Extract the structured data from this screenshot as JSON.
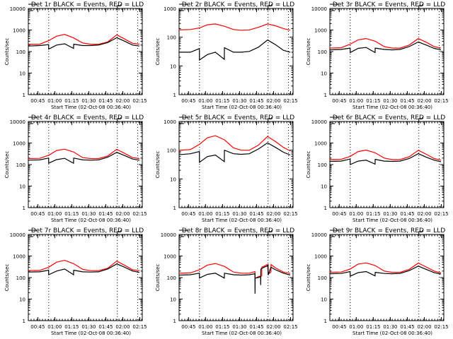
{
  "chart_data": [
    {
      "type": "line",
      "title": "Det 1r BLACK = Events, RED = LLD",
      "xlabel": "Start Time (02-Oct-08 00:36:40)",
      "ylabel": "Counts/sec",
      "ylim": [
        1,
        10000
      ],
      "yscale": "log",
      "yticks": [
        "1",
        "10",
        "100",
        "1000",
        "10000"
      ],
      "xticks": [
        "00:45",
        "01:00",
        "01:15",
        "01:30",
        "01:45",
        "02:00",
        "02:15"
      ],
      "xtick_minutes": [
        8.33,
        23.33,
        38.33,
        53.33,
        68.33,
        83.33,
        98.33
      ],
      "xlim_minutes": [
        0,
        100.5
      ],
      "vlines_minutes": [
        18,
        78.5,
        96.5
      ],
      "series": [
        {
          "name": "LLD",
          "color": "#ff0000",
          "x": [
            0,
            10,
            18,
            25,
            32,
            40,
            48,
            55,
            62,
            70,
            78,
            85,
            92,
            98
          ],
          "values": [
            220,
            220,
            320,
            520,
            620,
            430,
            250,
            220,
            220,
            280,
            600,
            380,
            240,
            220
          ]
        },
        {
          "name": "Events",
          "color": "#000000",
          "x": [
            0,
            10,
            17.9,
            18,
            25,
            32,
            39.9,
            40,
            48,
            55,
            62,
            70,
            78,
            85,
            92,
            98
          ],
          "values": [
            180,
            190,
            210,
            130,
            200,
            230,
            140,
            220,
            190,
            190,
            200,
            260,
            440,
            300,
            200,
            180
          ]
        }
      ]
    },
    {
      "type": "line",
      "title": "Det 2r BLACK = Events, RED = LLD",
      "xlabel": "Start Time (02-Oct-08 00:36:40)",
      "ylabel": "Counts/sec",
      "ylim": [
        1,
        1000
      ],
      "yscale": "log",
      "yticks": [
        "1",
        "10",
        "100",
        "1000"
      ],
      "xticks": [
        "00:45",
        "01:00",
        "01:15",
        "01:30",
        "01:45",
        "02:00",
        "02:15"
      ],
      "xtick_minutes": [
        8.33,
        23.33,
        38.33,
        53.33,
        68.33,
        83.33,
        98.33
      ],
      "xlim_minutes": [
        0,
        100.5
      ],
      "vlines_minutes": [
        18,
        78.5,
        96.5
      ],
      "series": [
        {
          "name": "LLD",
          "color": "#ff0000",
          "x": [
            0,
            10,
            18,
            25,
            32,
            40,
            48,
            55,
            62,
            70,
            78,
            85,
            92,
            98
          ],
          "values": [
            180,
            185,
            210,
            270,
            290,
            240,
            185,
            175,
            180,
            220,
            290,
            250,
            200,
            175
          ]
        },
        {
          "name": "Events",
          "color": "#000000",
          "x": [
            0,
            10,
            17.9,
            18,
            25,
            32,
            39.9,
            40,
            48,
            55,
            62,
            70,
            78,
            85,
            92,
            98
          ],
          "values": [
            30,
            30,
            40,
            16,
            25,
            30,
            17,
            43,
            30,
            30,
            32,
            45,
            80,
            55,
            35,
            30
          ]
        }
      ]
    },
    {
      "type": "line",
      "title": "Det 3r BLACK = Events, RED = LLD",
      "xlabel": "Start Time (02-Oct-08 00:36:40)",
      "ylabel": "Counts/sec",
      "ylim": [
        1,
        10000
      ],
      "yscale": "log",
      "yticks": [
        "1",
        "10",
        "100",
        "1000",
        "10000"
      ],
      "xticks": [
        "00:45",
        "01:00",
        "01:15",
        "01:30",
        "01:45",
        "02:00",
        "02:15"
      ],
      "xtick_minutes": [
        8.33,
        23.33,
        38.33,
        53.33,
        68.33,
        83.33,
        98.33
      ],
      "xlim_minutes": [
        0,
        100.5
      ],
      "vlines_minutes": [
        18,
        78.5,
        96.5
      ],
      "series": [
        {
          "name": "LLD",
          "color": "#ff0000",
          "x": [
            0,
            10,
            18,
            25,
            32,
            40,
            48,
            55,
            62,
            70,
            78,
            85,
            92,
            98
          ],
          "values": [
            145,
            150,
            220,
            350,
            400,
            300,
            170,
            145,
            145,
            200,
            400,
            270,
            170,
            145
          ]
        },
        {
          "name": "Events",
          "color": "#000000",
          "x": [
            0,
            10,
            17.9,
            18,
            25,
            32,
            39.9,
            40,
            48,
            55,
            62,
            70,
            78,
            85,
            92,
            98
          ],
          "values": [
            120,
            125,
            145,
            90,
            140,
            155,
            90,
            145,
            125,
            120,
            125,
            170,
            280,
            200,
            140,
            120
          ]
        }
      ]
    },
    {
      "type": "line",
      "title": "Det 4r BLACK = Events, RED = LLD",
      "xlabel": "Start Time (02-Oct-08 00:36:40)",
      "ylabel": "Counts/sec",
      "ylim": [
        1,
        10000
      ],
      "yscale": "log",
      "yticks": [
        "1",
        "10",
        "100",
        "1000",
        "10000"
      ],
      "xticks": [
        "00:45",
        "01:00",
        "01:15",
        "01:30",
        "01:45",
        "02:00",
        "02:15"
      ],
      "xtick_minutes": [
        8.33,
        23.33,
        38.33,
        53.33,
        68.33,
        83.33,
        98.33
      ],
      "xlim_minutes": [
        0,
        100.5
      ],
      "vlines_minutes": [
        18,
        78.5,
        96.5
      ],
      "series": [
        {
          "name": "LLD",
          "color": "#ff0000",
          "x": [
            0,
            10,
            18,
            25,
            32,
            40,
            48,
            55,
            62,
            70,
            78,
            85,
            92,
            98
          ],
          "values": [
            190,
            195,
            270,
            450,
            520,
            380,
            210,
            190,
            190,
            250,
            510,
            330,
            210,
            190
          ]
        },
        {
          "name": "Events",
          "color": "#000000",
          "x": [
            0,
            10,
            17.9,
            18,
            25,
            32,
            39.9,
            40,
            48,
            55,
            62,
            70,
            78,
            85,
            92,
            98
          ],
          "values": [
            160,
            165,
            200,
            115,
            170,
            195,
            115,
            200,
            165,
            160,
            165,
            220,
            370,
            260,
            180,
            160
          ]
        }
      ]
    },
    {
      "type": "line",
      "title": "Det 5r BLACK = Events, RED = LLD",
      "xlabel": "Start Time (02-Oct-08 00:36:40)",
      "ylabel": "Counts/sec",
      "ylim": [
        1,
        1000
      ],
      "yscale": "log",
      "yticks": [
        "1",
        "10",
        "100",
        "1000"
      ],
      "xticks": [
        "00:45",
        "01:00",
        "01:15",
        "01:30",
        "01:45",
        "02:00",
        "02:15"
      ],
      "xtick_minutes": [
        8.33,
        23.33,
        38.33,
        53.33,
        68.33,
        83.33,
        98.33
      ],
      "xlim_minutes": [
        0,
        100.5
      ],
      "vlines_minutes": [
        18,
        78.5,
        96.5
      ],
      "series": [
        {
          "name": "LLD",
          "color": "#ff0000",
          "x": [
            0,
            10,
            18,
            25,
            32,
            40,
            48,
            55,
            62,
            70,
            78,
            85,
            92,
            98
          ],
          "values": [
            100,
            105,
            160,
            270,
            320,
            230,
            120,
            100,
            100,
            150,
            300,
            200,
            125,
            95
          ]
        },
        {
          "name": "Events",
          "color": "#000000",
          "x": [
            0,
            10,
            17.9,
            18,
            25,
            32,
            39.9,
            40,
            48,
            55,
            62,
            70,
            78,
            85,
            92,
            98
          ],
          "values": [
            70,
            75,
            90,
            38,
            60,
            68,
            40,
            100,
            75,
            72,
            75,
            110,
            180,
            125,
            85,
            68
          ]
        }
      ]
    },
    {
      "type": "line",
      "title": "Det 6r BLACK = Events, RED = LLD",
      "xlabel": "Start Time (02-Oct-08 00:36:40)",
      "ylabel": "Counts/sec",
      "ylim": [
        1,
        10000
      ],
      "yscale": "log",
      "yticks": [
        "1",
        "10",
        "100",
        "1000",
        "10000"
      ],
      "xticks": [
        "00:45",
        "01:00",
        "01:15",
        "01:30",
        "01:45",
        "02:00",
        "02:15"
      ],
      "xtick_minutes": [
        8.33,
        23.33,
        38.33,
        53.33,
        68.33,
        83.33,
        98.33
      ],
      "xlim_minutes": [
        0,
        100.5
      ],
      "vlines_minutes": [
        18,
        78.5,
        96.5
      ],
      "series": [
        {
          "name": "LLD",
          "color": "#ff0000",
          "x": [
            0,
            10,
            18,
            25,
            32,
            40,
            48,
            55,
            62,
            70,
            78,
            85,
            92,
            98
          ],
          "values": [
            170,
            175,
            240,
            400,
            470,
            350,
            200,
            170,
            170,
            230,
            460,
            300,
            190,
            160
          ]
        },
        {
          "name": "Events",
          "color": "#000000",
          "x": [
            0,
            10,
            17.9,
            18,
            25,
            32,
            39.9,
            40,
            48,
            55,
            62,
            70,
            78,
            85,
            92,
            98
          ],
          "values": [
            140,
            145,
            180,
            100,
            145,
            160,
            105,
            175,
            145,
            140,
            145,
            190,
            320,
            220,
            160,
            135
          ]
        }
      ]
    },
    {
      "type": "line",
      "title": "Det 7r BLACK = Events, RED = LLD",
      "xlabel": "Start Time (02-Oct-08 00:36:40)",
      "ylabel": "Counts/sec",
      "ylim": [
        1,
        10000
      ],
      "yscale": "log",
      "yticks": [
        "1",
        "10",
        "100",
        "1000",
        "10000"
      ],
      "xticks": [
        "00:45",
        "01:00",
        "01:15",
        "01:30",
        "01:45",
        "02:00",
        "02:15"
      ],
      "xtick_minutes": [
        8.33,
        23.33,
        38.33,
        53.33,
        68.33,
        83.33,
        98.33
      ],
      "xlim_minutes": [
        0,
        100.5
      ],
      "vlines_minutes": [
        18,
        78.5,
        96.5
      ],
      "series": [
        {
          "name": "LLD",
          "color": "#ff0000",
          "x": [
            0,
            10,
            18,
            25,
            32,
            40,
            48,
            55,
            62,
            70,
            78,
            85,
            92,
            98
          ],
          "values": [
            210,
            215,
            300,
            520,
            630,
            440,
            240,
            210,
            210,
            270,
            580,
            370,
            230,
            210
          ]
        },
        {
          "name": "Events",
          "color": "#000000",
          "x": [
            0,
            10,
            17.9,
            18,
            25,
            32,
            39.9,
            40,
            48,
            55,
            62,
            70,
            78,
            85,
            92,
            98
          ],
          "values": [
            180,
            185,
            220,
            135,
            200,
            250,
            135,
            220,
            185,
            180,
            185,
            250,
            430,
            300,
            200,
            175
          ]
        }
      ]
    },
    {
      "type": "line",
      "title": "Det 8r BLACK = Events, RED = LLD",
      "xlabel": "Start Time (02-Oct-08 00:36:40)",
      "ylabel": "Counts/sec",
      "ylim": [
        1,
        10000
      ],
      "yscale": "log",
      "yticks": [
        "1",
        "10",
        "100",
        "1000",
        "10000"
      ],
      "xticks": [
        "00:45",
        "01:00",
        "01:15",
        "01:30",
        "01:45",
        "02:00",
        "02:15"
      ],
      "xtick_minutes": [
        8.33,
        23.33,
        38.33,
        53.33,
        68.33,
        83.33,
        98.33
      ],
      "xlim_minutes": [
        0,
        100.5
      ],
      "vlines_minutes": [
        18,
        78.5,
        96.5
      ],
      "series": [
        {
          "name": "LLD",
          "color": "#ff0000",
          "x": [
            0,
            10,
            18,
            25,
            32,
            40,
            48,
            55,
            62,
            66.9,
            67,
            70,
            72.9,
            73,
            78,
            78.6,
            79,
            81,
            81.1,
            85,
            92,
            98
          ],
          "values": [
            160,
            165,
            230,
            380,
            450,
            330,
            180,
            160,
            160,
            190,
            90,
            110,
            120,
            300,
            400,
            160,
            150,
            180,
            400,
            280,
            180,
            155
          ]
        },
        {
          "name": "Events",
          "color": "#000000",
          "x": [
            0,
            10,
            17.9,
            18,
            25,
            32,
            39.9,
            40,
            48,
            55,
            62,
            66.9,
            67,
            67.1,
            70,
            71.9,
            72,
            72.1,
            75,
            78,
            78.5,
            78.6,
            81,
            85,
            92,
            98
          ],
          "values": [
            130,
            135,
            160,
            95,
            140,
            160,
            95,
            160,
            135,
            130,
            135,
            150,
            18,
            95,
            100,
            110,
            45,
            250,
            300,
            350,
            380,
            130,
            300,
            230,
            160,
            130
          ]
        }
      ]
    },
    {
      "type": "line",
      "title": "Det 9r BLACK = Events, RED = LLD",
      "xlabel": "Start Time (02-Oct-08 00:36:40)",
      "ylabel": "Counts/sec",
      "ylim": [
        1,
        10000
      ],
      "yscale": "log",
      "yticks": [
        "1",
        "10",
        "100",
        "1000",
        "10000"
      ],
      "xticks": [
        "00:45",
        "01:00",
        "01:15",
        "01:30",
        "01:45",
        "02:00",
        "02:15"
      ],
      "xtick_minutes": [
        8.33,
        23.33,
        38.33,
        53.33,
        68.33,
        83.33,
        98.33
      ],
      "xlim_minutes": [
        0,
        100.5
      ],
      "vlines_minutes": [
        18,
        78.5,
        96.5
      ],
      "series": [
        {
          "name": "LLD",
          "color": "#ff0000",
          "x": [
            0,
            10,
            18,
            25,
            32,
            40,
            48,
            55,
            62,
            70,
            78,
            85,
            92,
            98
          ],
          "values": [
            175,
            180,
            250,
            420,
            480,
            360,
            200,
            175,
            175,
            240,
            470,
            310,
            200,
            165
          ]
        },
        {
          "name": "Events",
          "color": "#000000",
          "x": [
            0,
            10,
            17.9,
            18,
            25,
            32,
            39.9,
            40,
            48,
            55,
            62,
            70,
            78,
            85,
            92,
            98
          ],
          "values": [
            150,
            155,
            190,
            115,
            170,
            190,
            120,
            175,
            155,
            150,
            155,
            210,
            340,
            240,
            170,
            145
          ]
        }
      ]
    }
  ]
}
